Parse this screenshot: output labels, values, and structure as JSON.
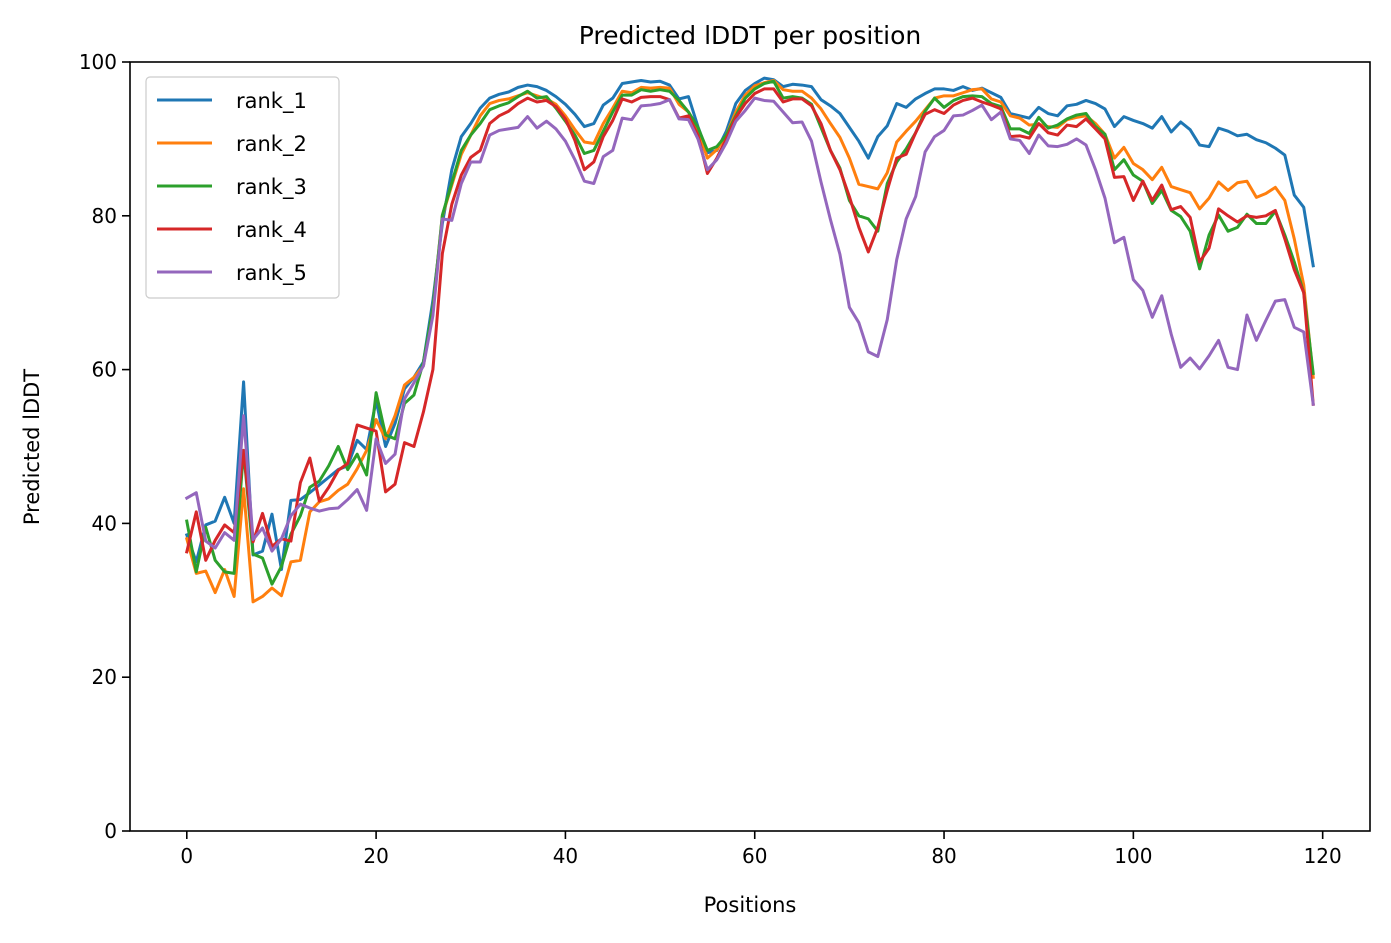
{
  "chart_data": {
    "type": "line",
    "title": "Predicted lDDT per position",
    "xlabel": "Positions",
    "ylabel": "Predicted lDDT",
    "xlim": [
      -6,
      125
    ],
    "ylim": [
      0,
      100
    ],
    "xticks": [
      0,
      20,
      40,
      60,
      80,
      100,
      120
    ],
    "yticks": [
      0,
      20,
      40,
      60,
      80,
      100
    ],
    "grid": false,
    "legend_position": "upper-left",
    "x": [
      0,
      1,
      2,
      3,
      4,
      5,
      6,
      7,
      8,
      9,
      10,
      11,
      12,
      13,
      14,
      15,
      16,
      17,
      18,
      19,
      20,
      21,
      22,
      23,
      24,
      25,
      26,
      27,
      28,
      29,
      30,
      31,
      32,
      33,
      34,
      35,
      36,
      37,
      38,
      39,
      40,
      41,
      42,
      43,
      44,
      45,
      46,
      47,
      48,
      49,
      50,
      51,
      52,
      53,
      54,
      55,
      56,
      57,
      58,
      59,
      60,
      61,
      62,
      63,
      64,
      65,
      66,
      67,
      68,
      69,
      70,
      71,
      72,
      73,
      74,
      75,
      76,
      77,
      78,
      79,
      80,
      81,
      82,
      83,
      84,
      85,
      86,
      87,
      88,
      89,
      90,
      91,
      92,
      93,
      94,
      95,
      96,
      97,
      98,
      99,
      100,
      101,
      102,
      103,
      104,
      105,
      106,
      107,
      108,
      109,
      110,
      111,
      112,
      113,
      114,
      115,
      116,
      117,
      118,
      119
    ],
    "series": [
      {
        "name": "rank_1",
        "color": "#1f77b4",
        "values": [
          38.5,
          35.0,
          39.8,
          40.3,
          43.4,
          40.0,
          58.4,
          35.9,
          36.4,
          41.2,
          34.0,
          43.0,
          43.1,
          44.0,
          45.0,
          46.0,
          47.0,
          47.5,
          50.8,
          49.6,
          56.0,
          50.0,
          53.0,
          57.5,
          59.0,
          61.0,
          69.0,
          79.0,
          86.0,
          90.3,
          92.0,
          94.0,
          95.3,
          95.8,
          96.1,
          96.7,
          97.0,
          96.8,
          96.3,
          95.5,
          94.5,
          93.2,
          91.6,
          92.0,
          94.4,
          95.3,
          97.2,
          97.4,
          97.6,
          97.4,
          97.5,
          97.0,
          95.2,
          95.5,
          91.6,
          88.2,
          88.5,
          91.0,
          94.6,
          96.3,
          97.2,
          97.9,
          97.7,
          96.8,
          97.1,
          97.0,
          96.8,
          95.1,
          94.3,
          93.3,
          91.5,
          89.7,
          87.5,
          90.3,
          91.7,
          94.6,
          94.1,
          95.2,
          95.9,
          96.5,
          96.5,
          96.3,
          96.8,
          96.3,
          96.6,
          96.0,
          95.4,
          93.3,
          93.0,
          92.7,
          94.1,
          93.3,
          93.0,
          94.3,
          94.5,
          95.0,
          94.6,
          93.9,
          91.6,
          92.9,
          92.4,
          92.0,
          91.4,
          92.9,
          90.9,
          92.2,
          91.2,
          89.2,
          89.0,
          91.4,
          91.0,
          90.4,
          90.6,
          89.9,
          89.5,
          88.8,
          87.9,
          82.7,
          81.1,
          73.5
        ]
      },
      {
        "name": "rank_2",
        "color": "#ff7f0e",
        "values": [
          38.0,
          33.5,
          33.8,
          31.0,
          34.0,
          30.5,
          44.5,
          29.8,
          30.5,
          31.6,
          30.6,
          35.0,
          35.2,
          41.5,
          42.8,
          43.2,
          44.3,
          45.1,
          47.1,
          49.5,
          53.5,
          51.0,
          54.0,
          58.0,
          59.0,
          60.5,
          68.0,
          80.0,
          84.0,
          88.0,
          90.5,
          93.0,
          94.6,
          95.0,
          95.2,
          95.6,
          96.0,
          95.6,
          95.2,
          94.5,
          93.0,
          91.2,
          89.6,
          89.4,
          92.0,
          94.0,
          96.2,
          96.0,
          96.7,
          96.6,
          96.7,
          96.6,
          94.5,
          93.5,
          91.3,
          87.5,
          88.6,
          90.5,
          93.5,
          95.7,
          96.9,
          97.3,
          97.6,
          96.4,
          96.2,
          96.2,
          95.3,
          93.9,
          92.0,
          90.2,
          87.5,
          84.1,
          83.8,
          83.5,
          85.6,
          89.6,
          91.0,
          92.3,
          93.8,
          95.3,
          95.6,
          95.6,
          96.0,
          96.4,
          96.5,
          95.2,
          94.8,
          93.0,
          92.7,
          91.8,
          91.9,
          91.6,
          91.5,
          92.5,
          92.8,
          93.0,
          92.0,
          90.6,
          87.5,
          88.9,
          86.8,
          86.0,
          84.7,
          86.3,
          83.8,
          83.4,
          83.0,
          80.9,
          82.3,
          84.4,
          83.3,
          84.3,
          84.5,
          82.4,
          82.9,
          83.7,
          82.0,
          77.0,
          71.0,
          59.0
        ]
      },
      {
        "name": "rank_3",
        "color": "#2ca02c",
        "values": [
          40.3,
          33.7,
          39.5,
          35.2,
          33.7,
          33.5,
          49.5,
          36.0,
          35.5,
          32.1,
          34.4,
          38.6,
          41.0,
          44.7,
          45.5,
          47.5,
          50.0,
          47.0,
          49.0,
          46.3,
          57.0,
          51.5,
          51.0,
          55.6,
          56.7,
          61.0,
          68.0,
          80.1,
          84.3,
          88.5,
          90.5,
          92.0,
          93.8,
          94.3,
          94.7,
          95.5,
          96.2,
          95.3,
          95.5,
          94.0,
          92.3,
          90.5,
          88.1,
          88.5,
          91.0,
          93.5,
          95.7,
          95.7,
          96.4,
          96.2,
          96.4,
          96.2,
          95.0,
          93.5,
          91.5,
          88.5,
          89.0,
          90.5,
          93.0,
          95.3,
          96.5,
          97.2,
          97.5,
          95.3,
          95.5,
          95.3,
          94.5,
          91.5,
          88.5,
          86.2,
          82.0,
          80.0,
          79.6,
          78.0,
          84.2,
          87.0,
          88.7,
          90.8,
          93.6,
          95.3,
          94.1,
          95.0,
          95.5,
          95.6,
          95.5,
          94.6,
          94.2,
          91.3,
          91.3,
          90.7,
          92.8,
          91.4,
          91.8,
          92.6,
          93.1,
          93.3,
          91.6,
          90.6,
          86.0,
          87.3,
          85.3,
          84.5,
          81.6,
          83.3,
          80.7,
          79.9,
          78.0,
          73.1,
          77.5,
          80.1,
          78.0,
          78.5,
          80.2,
          79.0,
          79.0,
          80.6,
          77.5,
          74.0,
          70.0,
          59.5
        ]
      },
      {
        "name": "rank_4",
        "color": "#d62728",
        "values": [
          36.3,
          41.5,
          35.2,
          37.8,
          39.8,
          38.8,
          49.5,
          37.6,
          41.3,
          37.0,
          38.0,
          37.7,
          45.3,
          48.5,
          42.9,
          44.7,
          46.9,
          47.8,
          52.8,
          52.4,
          52.0,
          44.1,
          45.1,
          50.5,
          50.0,
          54.5,
          60.0,
          75.1,
          81.5,
          85.3,
          87.6,
          88.5,
          92.0,
          93.0,
          93.6,
          94.6,
          95.3,
          94.8,
          95.0,
          94.2,
          92.6,
          89.8,
          86.0,
          87.0,
          90.3,
          92.4,
          95.2,
          94.8,
          95.4,
          95.5,
          95.5,
          95.1,
          92.7,
          93.0,
          90.5,
          85.5,
          87.5,
          90.0,
          92.8,
          94.6,
          95.9,
          96.5,
          96.5,
          94.8,
          95.2,
          95.2,
          94.3,
          92.0,
          88.5,
          86.0,
          82.5,
          78.5,
          75.3,
          78.5,
          83.3,
          87.5,
          88.0,
          90.8,
          93.2,
          93.8,
          93.3,
          94.4,
          95.0,
          95.3,
          94.8,
          94.4,
          93.9,
          90.3,
          90.4,
          90.1,
          92.0,
          90.8,
          90.5,
          91.8,
          91.6,
          92.6,
          91.3,
          90.0,
          85.0,
          85.1,
          82.0,
          84.5,
          82.0,
          84.0,
          80.8,
          81.2,
          79.8,
          74.0,
          75.8,
          80.9,
          80.0,
          79.2,
          80.0,
          79.8,
          80.0,
          80.7,
          77.0,
          73.0,
          70.0,
          55.5
        ]
      },
      {
        "name": "rank_5",
        "color": "#9467bd",
        "values": [
          43.3,
          44.0,
          37.7,
          36.8,
          38.8,
          37.8,
          54.0,
          37.9,
          39.4,
          36.4,
          38.0,
          41.0,
          42.5,
          42.0,
          41.6,
          41.9,
          42.0,
          43.1,
          44.4,
          41.7,
          51.0,
          47.8,
          49.0,
          56.2,
          58.3,
          60.5,
          67.0,
          79.6,
          79.4,
          84.2,
          87.0,
          87.0,
          90.5,
          91.1,
          91.3,
          91.5,
          92.9,
          91.4,
          92.3,
          91.3,
          89.7,
          87.3,
          84.5,
          84.2,
          87.7,
          88.5,
          92.7,
          92.5,
          94.3,
          94.4,
          94.6,
          95.1,
          92.6,
          92.5,
          90.0,
          86.0,
          87.3,
          89.5,
          92.3,
          93.7,
          95.3,
          95.0,
          94.9,
          93.5,
          92.1,
          92.2,
          89.7,
          84.4,
          79.5,
          75.0,
          68.1,
          66.1,
          62.3,
          61.7,
          66.5,
          74.3,
          79.6,
          82.5,
          88.3,
          90.3,
          91.1,
          93.0,
          93.1,
          93.7,
          94.4,
          92.5,
          93.5,
          90.0,
          89.8,
          88.1,
          90.5,
          89.1,
          89.0,
          89.3,
          90.0,
          89.2,
          86.0,
          82.3,
          76.5,
          77.2,
          71.7,
          70.3,
          66.8,
          69.6,
          64.6,
          60.3,
          61.5,
          60.1,
          61.8,
          63.8,
          60.3,
          60.0,
          67.1,
          63.8,
          66.4,
          68.9,
          69.1,
          65.5,
          64.9,
          55.5
        ]
      }
    ]
  }
}
